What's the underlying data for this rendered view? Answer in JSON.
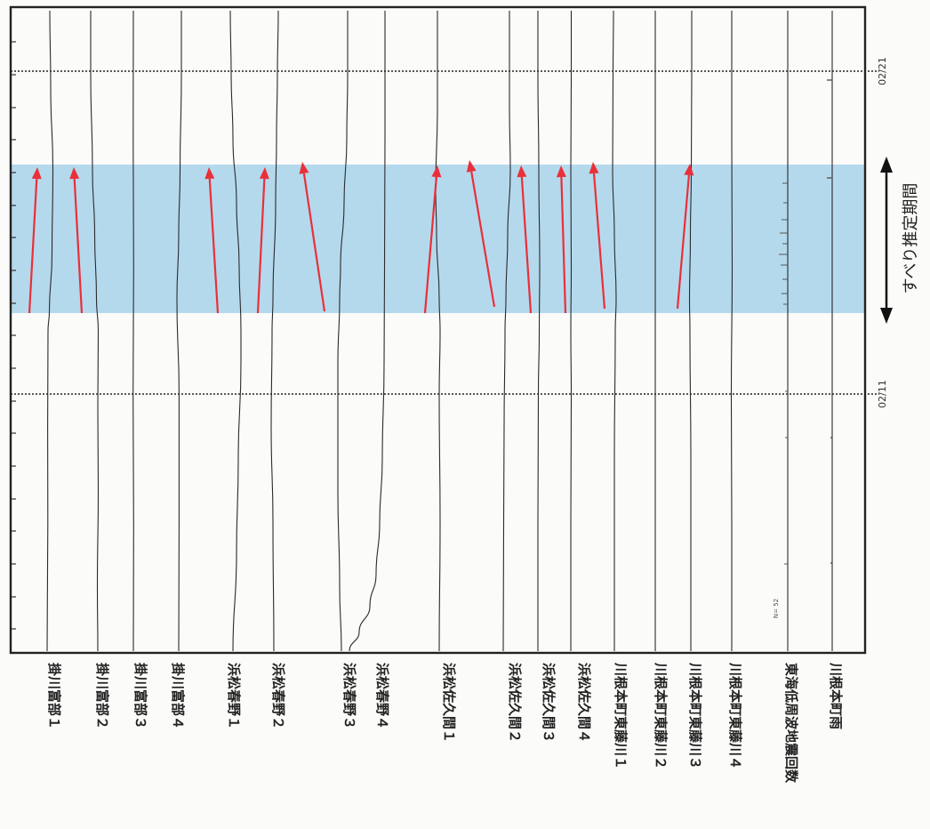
{
  "chart_data": {
    "type": "line",
    "orientation": "vertical time axis (time runs bottom to top), one vertical trace per station",
    "grid": false,
    "date_markers": [
      "02/11",
      "02/21"
    ],
    "highlight_band": {
      "label": "すべり推定期間",
      "color": "#b5d9ec"
    },
    "annotation_marker": "N= 52",
    "arrow_color": "#e8303a",
    "series": [
      {
        "name": "掛川富部１",
        "has_arrow": true,
        "trace": [
          [
            0,
            0
          ],
          [
            0.08,
            0.3
          ],
          [
            0.2,
            0.8
          ],
          [
            0.35,
            0.6
          ],
          [
            0.5,
            1.0
          ],
          [
            0.53,
            2.5
          ],
          [
            0.62,
            5.5
          ],
          [
            0.75,
            6.5
          ],
          [
            0.88,
            4.0
          ],
          [
            1,
            3.0
          ]
        ]
      },
      {
        "name": "掛川富部２",
        "has_arrow": true,
        "trace": [
          [
            0,
            0
          ],
          [
            0.1,
            -0.5
          ],
          [
            0.25,
            0.5
          ],
          [
            0.38,
            0
          ],
          [
            0.5,
            0.5
          ],
          [
            0.55,
            -1.5
          ],
          [
            0.65,
            -3.5
          ],
          [
            0.75,
            -6.0
          ],
          [
            0.9,
            -8.0
          ],
          [
            1,
            -8.0
          ]
        ]
      },
      {
        "name": "掛川富部３",
        "has_arrow": false,
        "trace": [
          [
            0,
            0
          ],
          [
            0.2,
            0.3
          ],
          [
            0.4,
            -0.3
          ],
          [
            0.6,
            0.3
          ],
          [
            0.8,
            -0.2
          ],
          [
            1,
            0
          ]
        ]
      },
      {
        "name": "掛川富部４",
        "has_arrow": false,
        "trace": [
          [
            0,
            0
          ],
          [
            0.2,
            0.4
          ],
          [
            0.4,
            0.4
          ],
          [
            0.55,
            -2.0
          ],
          [
            0.65,
            0
          ],
          [
            0.75,
            1.5
          ],
          [
            0.9,
            3.0
          ],
          [
            1,
            3.0
          ]
        ]
      },
      {
        "name": "浜松春野１",
        "has_arrow": true,
        "trace": [
          [
            0,
            0
          ],
          [
            0.15,
            4.0
          ],
          [
            0.3,
            6.0
          ],
          [
            0.45,
            9.0
          ],
          [
            0.5,
            9.0
          ],
          [
            0.6,
            7.0
          ],
          [
            0.7,
            4.0
          ],
          [
            0.8,
            0
          ],
          [
            0.9,
            -2.0
          ],
          [
            1,
            -3.0
          ]
        ]
      },
      {
        "name": "浜松春野２",
        "has_arrow": true,
        "trace": [
          [
            0,
            0
          ],
          [
            0.2,
            -1.0
          ],
          [
            0.35,
            -3.0
          ],
          [
            0.5,
            -2.0
          ],
          [
            0.55,
            -1.0
          ],
          [
            0.7,
            2.0
          ],
          [
            0.8,
            3.0
          ],
          [
            0.9,
            4.0
          ],
          [
            1,
            5.0
          ]
        ]
      },
      {
        "name": "浜松春野３",
        "has_arrow": true,
        "trace": [
          [
            0,
            0
          ],
          [
            0.1,
            -2.0
          ],
          [
            0.25,
            -4.0
          ],
          [
            0.45,
            -4.0
          ],
          [
            0.55,
            -2.0
          ],
          [
            0.6,
            -1.0
          ],
          [
            0.7,
            3.0
          ],
          [
            0.8,
            6.0
          ],
          [
            0.9,
            7.0
          ],
          [
            1,
            7.0
          ]
        ]
      },
      {
        "name": "浜松春野４",
        "has_arrow": false,
        "trace": [
          [
            0,
            -35.0
          ],
          [
            0.03,
            -24.0
          ],
          [
            0.07,
            -12.0
          ],
          [
            0.12,
            -5.0
          ],
          [
            0.2,
            -1.0
          ],
          [
            0.3,
            2.0
          ],
          [
            0.45,
            4.0
          ],
          [
            0.6,
            4.5
          ],
          [
            0.8,
            5.0
          ],
          [
            1,
            5.0
          ]
        ]
      },
      {
        "name": "浜松佐久間１",
        "has_arrow": true,
        "trace": [
          [
            0,
            0
          ],
          [
            0.2,
            1.0
          ],
          [
            0.4,
            0
          ],
          [
            0.5,
            1.0
          ],
          [
            0.55,
            0
          ],
          [
            0.65,
            -3.0
          ],
          [
            0.72,
            -4.0
          ],
          [
            0.85,
            -2.0
          ],
          [
            1,
            -2.0
          ]
        ]
      },
      {
        "name": "浜松佐久間２",
        "has_arrow": true,
        "trace": [
          [
            0,
            0
          ],
          [
            0.2,
            0.5
          ],
          [
            0.35,
            1.0
          ],
          [
            0.5,
            2.0
          ],
          [
            0.55,
            3.0
          ],
          [
            0.65,
            5.0
          ],
          [
            0.75,
            8.0
          ],
          [
            0.85,
            7.0
          ],
          [
            1,
            7.0
          ]
        ]
      },
      {
        "name": "浜松佐久間３",
        "has_arrow": true,
        "trace": [
          [
            0,
            0
          ],
          [
            0.2,
            0
          ],
          [
            0.4,
            0.5
          ],
          [
            0.5,
            1.5
          ],
          [
            0.6,
            2.0
          ],
          [
            0.75,
            1.0
          ],
          [
            0.9,
            0
          ],
          [
            1,
            0
          ]
        ]
      },
      {
        "name": "浜松佐久間４",
        "has_arrow": true,
        "trace": [
          [
            0,
            0
          ],
          [
            0.2,
            0
          ],
          [
            0.4,
            0.5
          ],
          [
            0.5,
            0
          ],
          [
            0.6,
            0.5
          ],
          [
            0.75,
            0
          ],
          [
            0.9,
            0.5
          ],
          [
            1,
            0.5
          ]
        ]
      },
      {
        "name": "川根本町東藤川１",
        "has_arrow": true,
        "trace": [
          [
            0,
            0
          ],
          [
            0.3,
            0
          ],
          [
            0.5,
            1.0
          ],
          [
            0.55,
            2.0
          ],
          [
            0.65,
            0
          ],
          [
            0.75,
            -2.0
          ],
          [
            0.9,
            -1.5
          ],
          [
            1,
            -1.0
          ]
        ]
      },
      {
        "name": "川根本町東藤川２",
        "has_arrow": false,
        "trace": [
          [
            0,
            0
          ],
          [
            0.3,
            0
          ],
          [
            0.5,
            0
          ],
          [
            0.7,
            0
          ],
          [
            1,
            0
          ]
        ]
      },
      {
        "name": "川根本町東藤川３",
        "has_arrow": true,
        "trace": [
          [
            0,
            0
          ],
          [
            0.3,
            0
          ],
          [
            0.5,
            -1.0
          ],
          [
            0.55,
            -1.5
          ],
          [
            0.65,
            -0.5
          ],
          [
            0.75,
            0.5
          ],
          [
            0.9,
            1.0
          ],
          [
            1,
            1.0
          ]
        ]
      },
      {
        "name": "川根本町東藤川４",
        "has_arrow": false,
        "trace": [
          [
            0,
            0
          ],
          [
            0.2,
            0
          ],
          [
            0.4,
            -0.5
          ],
          [
            0.6,
            0.5
          ],
          [
            0.8,
            0
          ],
          [
            1,
            0
          ]
        ]
      },
      {
        "name": "東海低周波地震回数",
        "has_arrow": false,
        "trace": [
          [
            0,
            0
          ],
          [
            1,
            0
          ]
        ]
      },
      {
        "name": "川根本町雨",
        "has_arrow": false,
        "trace": [
          [
            0,
            0
          ],
          [
            1,
            0
          ]
        ]
      }
    ]
  }
}
